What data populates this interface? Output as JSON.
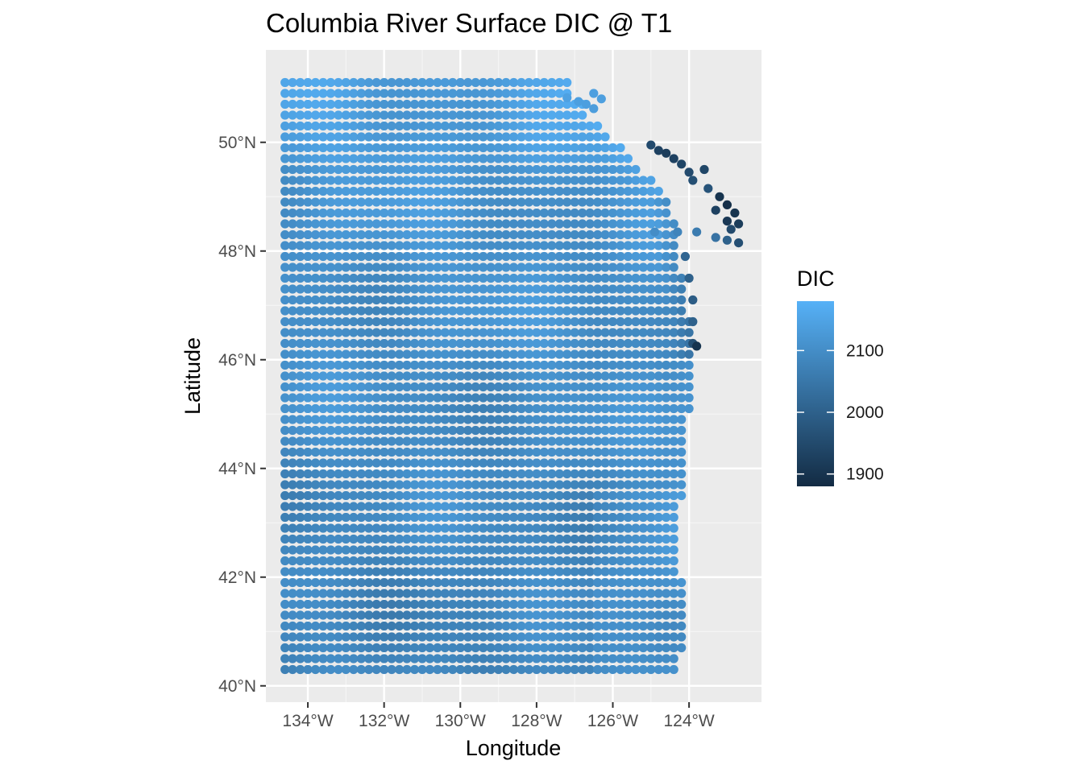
{
  "chart_data": {
    "type": "heatmap",
    "title": "Columbia River Surface DIC @ T1",
    "xlabel": "Longitude",
    "ylabel": "Latitude",
    "xlim": [
      -135.1,
      -122.1
    ],
    "ylim": [
      39.7,
      51.7
    ],
    "x_ticks": [
      {
        "value": -134,
        "label": "134°W"
      },
      {
        "value": -132,
        "label": "132°W"
      },
      {
        "value": -130,
        "label": "130°W"
      },
      {
        "value": -128,
        "label": "128°W"
      },
      {
        "value": -126,
        "label": "126°W"
      },
      {
        "value": -124,
        "label": "124°W"
      }
    ],
    "y_ticks": [
      {
        "value": 40,
        "label": "40°N"
      },
      {
        "value": 42,
        "label": "42°N"
      },
      {
        "value": 44,
        "label": "44°N"
      },
      {
        "value": 46,
        "label": "46°N"
      },
      {
        "value": 48,
        "label": "48°N"
      },
      {
        "value": 50,
        "label": "50°N"
      }
    ],
    "grid": true,
    "legend": {
      "title": "DIC",
      "position": "right",
      "range": [
        1880,
        2180
      ],
      "ticks": [
        {
          "value": 2100,
          "label": "2100"
        },
        {
          "value": 2000,
          "label": "2000"
        },
        {
          "value": 1900,
          "label": "1900"
        }
      ],
      "color_low": "#132b43",
      "color_high": "#56b1f7"
    },
    "domain": {
      "lon_min": -134.6,
      "lat_min": 40.25,
      "lat_max": 51.1
    },
    "coast": [
      [
        51.1,
        -127.1
      ],
      [
        50.95,
        -127.2
      ],
      [
        50.8,
        -126.9
      ],
      [
        50.6,
        -126.7
      ],
      [
        50.4,
        -126.6
      ],
      [
        50.2,
        -126.2
      ],
      [
        50.0,
        -125.9
      ],
      [
        49.8,
        -125.7
      ],
      [
        49.6,
        -125.4
      ],
      [
        49.4,
        -125.1
      ],
      [
        49.2,
        -124.9
      ],
      [
        49.0,
        -124.6
      ],
      [
        48.8,
        -124.5
      ],
      [
        48.6,
        -124.4
      ],
      [
        48.4,
        -124.4
      ],
      [
        48.0,
        -124.4
      ],
      [
        47.6,
        -124.2
      ],
      [
        47.2,
        -124.1
      ],
      [
        46.8,
        -124.0
      ],
      [
        46.4,
        -124.0
      ],
      [
        46.0,
        -124.0
      ],
      [
        45.5,
        -124.0
      ],
      [
        45.0,
        -124.0
      ],
      [
        44.5,
        -124.1
      ],
      [
        44.0,
        -124.1
      ],
      [
        43.5,
        -124.2
      ],
      [
        43.0,
        -124.4
      ],
      [
        42.5,
        -124.4
      ],
      [
        42.0,
        -124.2
      ],
      [
        41.5,
        -124.1
      ],
      [
        41.0,
        -124.1
      ],
      [
        40.6,
        -124.2
      ],
      [
        40.25,
        -124.4
      ]
    ],
    "extra_points": [
      {
        "lon": -126.5,
        "lat": 50.9,
        "dic": 2140
      },
      {
        "lon": -126.3,
        "lat": 50.8,
        "dic": 2140
      },
      {
        "lon": -126.7,
        "lat": 50.7,
        "dic": 2140
      },
      {
        "lon": -127.2,
        "lat": 50.82,
        "dic": 2145
      },
      {
        "lon": -126.9,
        "lat": 50.75,
        "dic": 2140
      },
      {
        "lon": -126.5,
        "lat": 50.62,
        "dic": 2135
      },
      {
        "lon": -124.9,
        "lat": 48.35,
        "dic": 2100
      },
      {
        "lon": -124.3,
        "lat": 48.35,
        "dic": 2080
      },
      {
        "lon": -123.8,
        "lat": 48.35,
        "dic": 2060
      },
      {
        "lon": -123.3,
        "lat": 48.25,
        "dic": 2040
      },
      {
        "lon": -123.0,
        "lat": 48.2,
        "dic": 2000
      },
      {
        "lon": -122.7,
        "lat": 48.15,
        "dic": 1960
      },
      {
        "lon": -125.0,
        "lat": 49.95,
        "dic": 1950
      },
      {
        "lon": -124.8,
        "lat": 49.85,
        "dic": 1930
      },
      {
        "lon": -124.6,
        "lat": 49.8,
        "dic": 1920
      },
      {
        "lon": -124.4,
        "lat": 49.7,
        "dic": 1930
      },
      {
        "lon": -124.2,
        "lat": 49.6,
        "dic": 1940
      },
      {
        "lon": -124.0,
        "lat": 49.45,
        "dic": 1950
      },
      {
        "lon": -123.9,
        "lat": 49.3,
        "dic": 1960
      },
      {
        "lon": -123.6,
        "lat": 49.5,
        "dic": 1940
      },
      {
        "lon": -123.5,
        "lat": 49.15,
        "dic": 1970
      },
      {
        "lon": -123.2,
        "lat": 49.0,
        "dic": 1900
      },
      {
        "lon": -123.0,
        "lat": 48.85,
        "dic": 1890
      },
      {
        "lon": -122.8,
        "lat": 48.7,
        "dic": 1900
      },
      {
        "lon": -122.7,
        "lat": 48.5,
        "dic": 1920
      },
      {
        "lon": -123.3,
        "lat": 48.75,
        "dic": 1930
      },
      {
        "lon": -122.9,
        "lat": 48.4,
        "dic": 1950
      },
      {
        "lon": -123.0,
        "lat": 48.55,
        "dic": 1910
      },
      {
        "lon": -124.1,
        "lat": 47.9,
        "dic": 2010
      },
      {
        "lon": -124.0,
        "lat": 47.5,
        "dic": 2000
      },
      {
        "lon": -123.9,
        "lat": 47.1,
        "dic": 1990
      },
      {
        "lon": -123.9,
        "lat": 46.7,
        "dic": 2000
      },
      {
        "lon": -123.9,
        "lat": 46.3,
        "dic": 1960
      },
      {
        "lon": -123.8,
        "lat": 46.25,
        "dic": 1900
      }
    ]
  }
}
